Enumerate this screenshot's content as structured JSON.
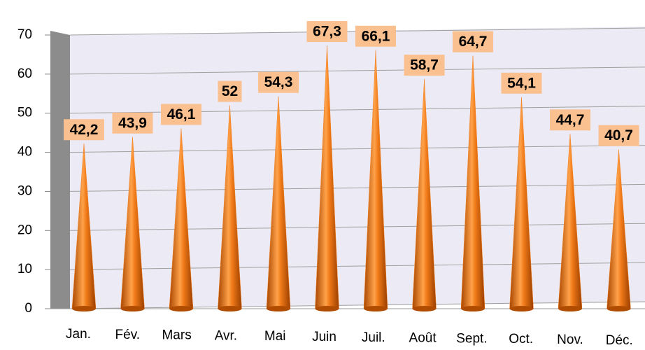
{
  "chart_data": {
    "type": "cone",
    "categories": [
      "Jan.",
      "Fév.",
      "Mars",
      "Avr.",
      "Mai",
      "Juin",
      "Juil.",
      "Août",
      "Sept.",
      "Oct.",
      "Nov.",
      "Déc."
    ],
    "values": [
      42.2,
      43.9,
      46.1,
      52,
      54.3,
      67.3,
      66.1,
      58.7,
      64.7,
      54.1,
      44.7,
      40.7
    ],
    "value_labels": [
      "42,2",
      "43,9",
      "46,1",
      "52",
      "54,3",
      "67,3",
      "66,1",
      "58,7",
      "64,7",
      "54,1",
      "44,7",
      "40,7"
    ],
    "color": "#f58220",
    "ylim": [
      0,
      70
    ],
    "yticks": [
      0,
      10,
      20,
      30,
      40,
      50,
      60,
      70
    ],
    "grid": true
  }
}
